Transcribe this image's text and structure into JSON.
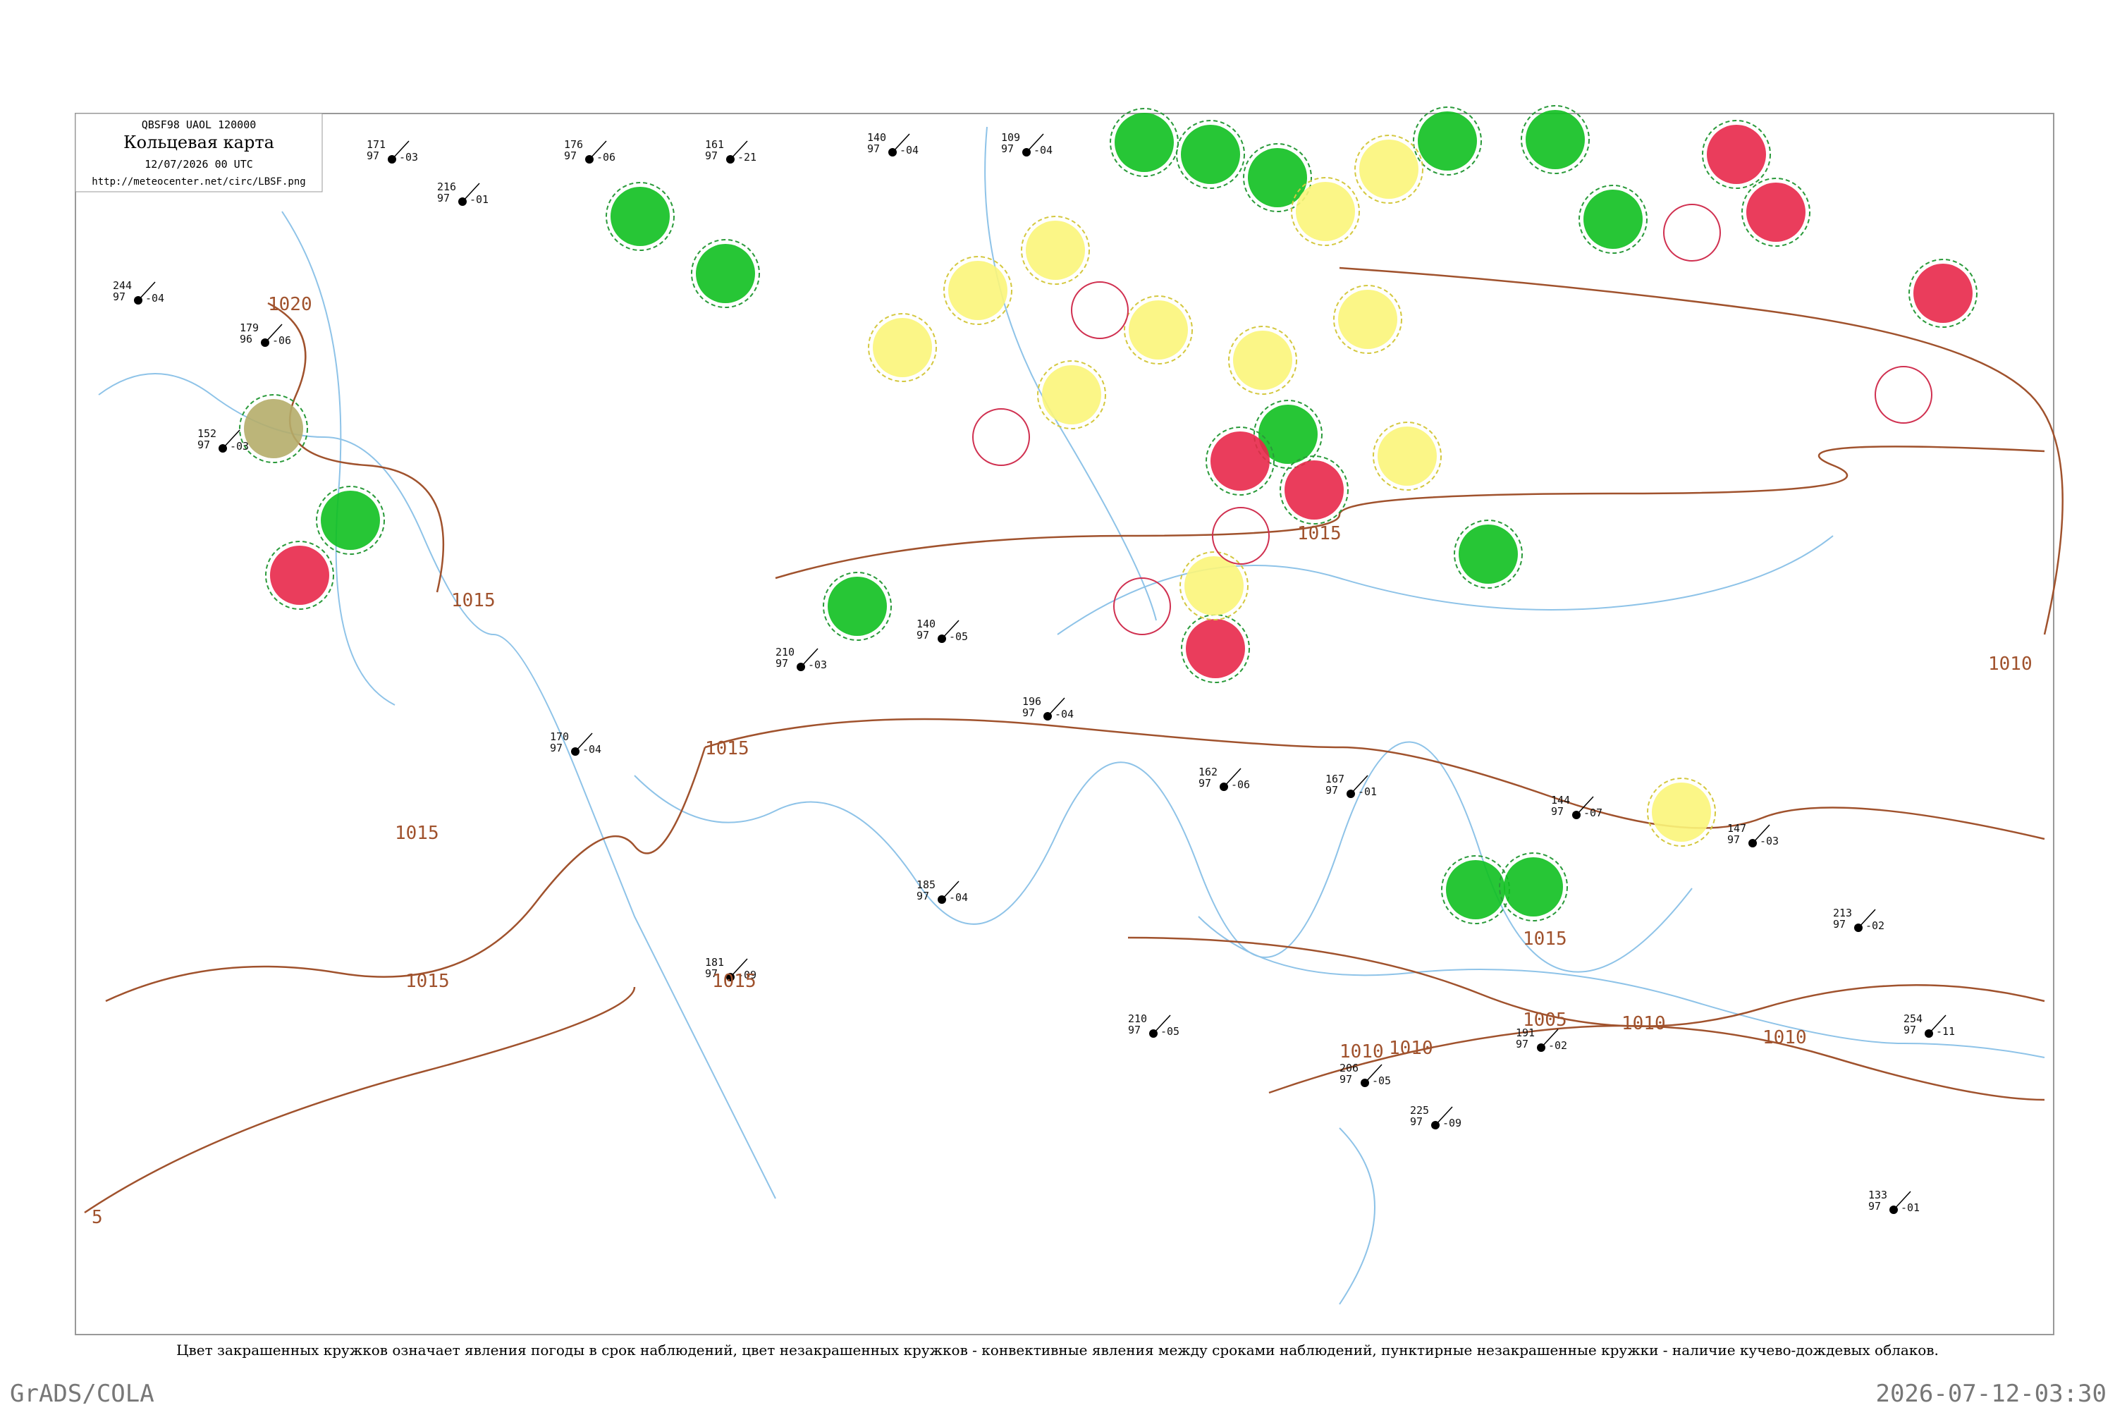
{
  "header": {
    "code": "QBSF98  UAOL  120000",
    "title": "Кольцевая карта",
    "time": "12/07/2026 00 UTC",
    "url": "http://meteocenter.net/circ/LBSF.png"
  },
  "isobars": [
    "1020",
    "1015",
    "1015",
    "1015",
    "1015",
    "1015",
    "1015",
    "1015",
    "1010",
    "1010",
    "1010",
    "1010",
    "1005",
    "1010",
    "5"
  ],
  "stations": [
    [
      "171",
      "97",
      "-03"
    ],
    [
      "176",
      "97",
      "-06"
    ],
    [
      "161",
      "97",
      "-21"
    ],
    [
      "140",
      "97",
      "-04"
    ],
    [
      "109",
      "97",
      "-04"
    ],
    [
      "216",
      "97",
      "-01"
    ],
    [
      "244",
      "97",
      "-04"
    ],
    [
      "179",
      "96",
      "-06"
    ],
    [
      "152",
      "97",
      "-03"
    ],
    [
      "210",
      "97",
      "-03"
    ],
    [
      "140",
      "97",
      "-05"
    ],
    [
      "196",
      "97",
      "-04"
    ],
    [
      "170",
      "97",
      "-04"
    ],
    [
      "162",
      "97",
      "-06"
    ],
    [
      "167",
      "97",
      "-01"
    ],
    [
      "144",
      "97",
      "-07"
    ],
    [
      "147",
      "97",
      "-03"
    ],
    [
      "213",
      "97",
      "-02"
    ],
    [
      "254",
      "97",
      "-11"
    ],
    [
      "191",
      "97",
      "-02"
    ],
    [
      "206",
      "97",
      "-05"
    ],
    [
      "225",
      "97",
      "-09"
    ],
    [
      "185",
      "97",
      "-04"
    ],
    [
      "210",
      "97",
      "-05"
    ],
    [
      "133",
      "97",
      "-01"
    ],
    [
      "181",
      "97",
      "-09"
    ]
  ],
  "caption": "Цвет закрашенных кружков означает явления погоды в срок наблюдений, цвет незакрашенных кружков - конвективные явления между сроками наблюдений, пунктирные незакрашенные кружки - наличие кучево-дождевых облаков.",
  "footer": {
    "left": "GrADS/COLA",
    "right": "2026-07-12-03:30"
  }
}
